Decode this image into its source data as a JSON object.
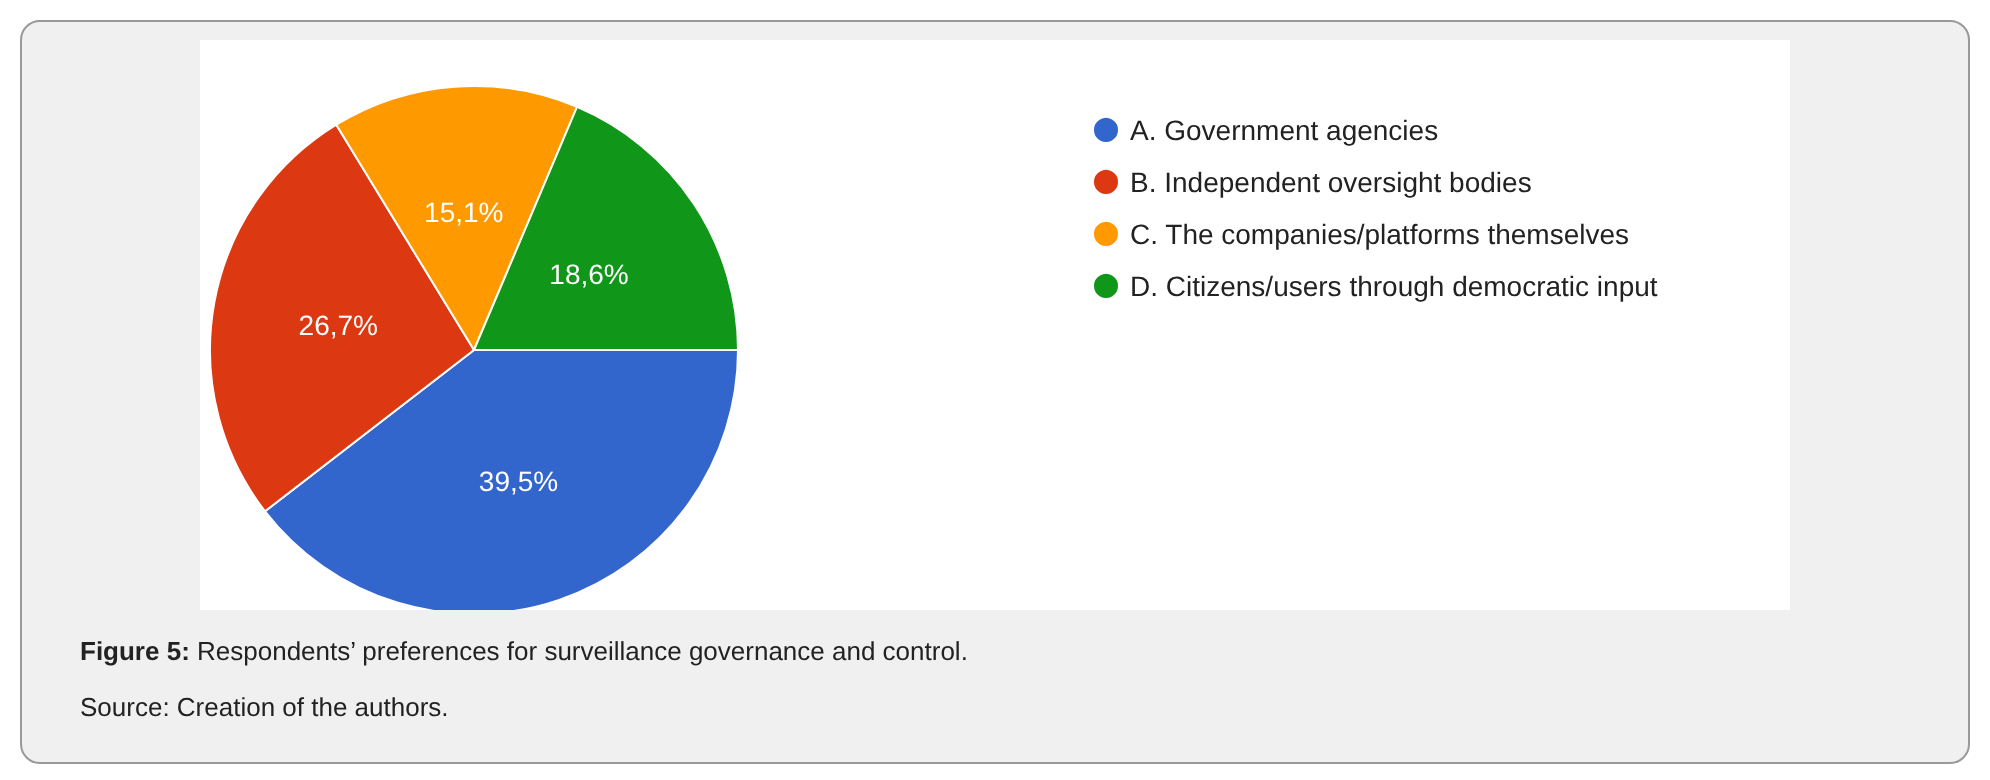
{
  "chart_data": {
    "type": "pie",
    "categories": [
      "A. Government agencies",
      "B. Independent oversight bodies",
      "C. The companies/platforms themselves",
      "D. Citizens/users through democratic input"
    ],
    "values": [
      39.5,
      26.7,
      15.1,
      18.6
    ],
    "colors": [
      "#3366cc",
      "#dc3912",
      "#ff9900",
      "#109618"
    ],
    "value_labels": [
      "39,5%",
      "26,7%",
      "15,1%",
      "18,6%"
    ],
    "legend": "right",
    "annotations": [
      "Figure 5: Respondents’ preferences for surveillance governance and control.",
      "Source: Creation of the authors."
    ]
  }
}
